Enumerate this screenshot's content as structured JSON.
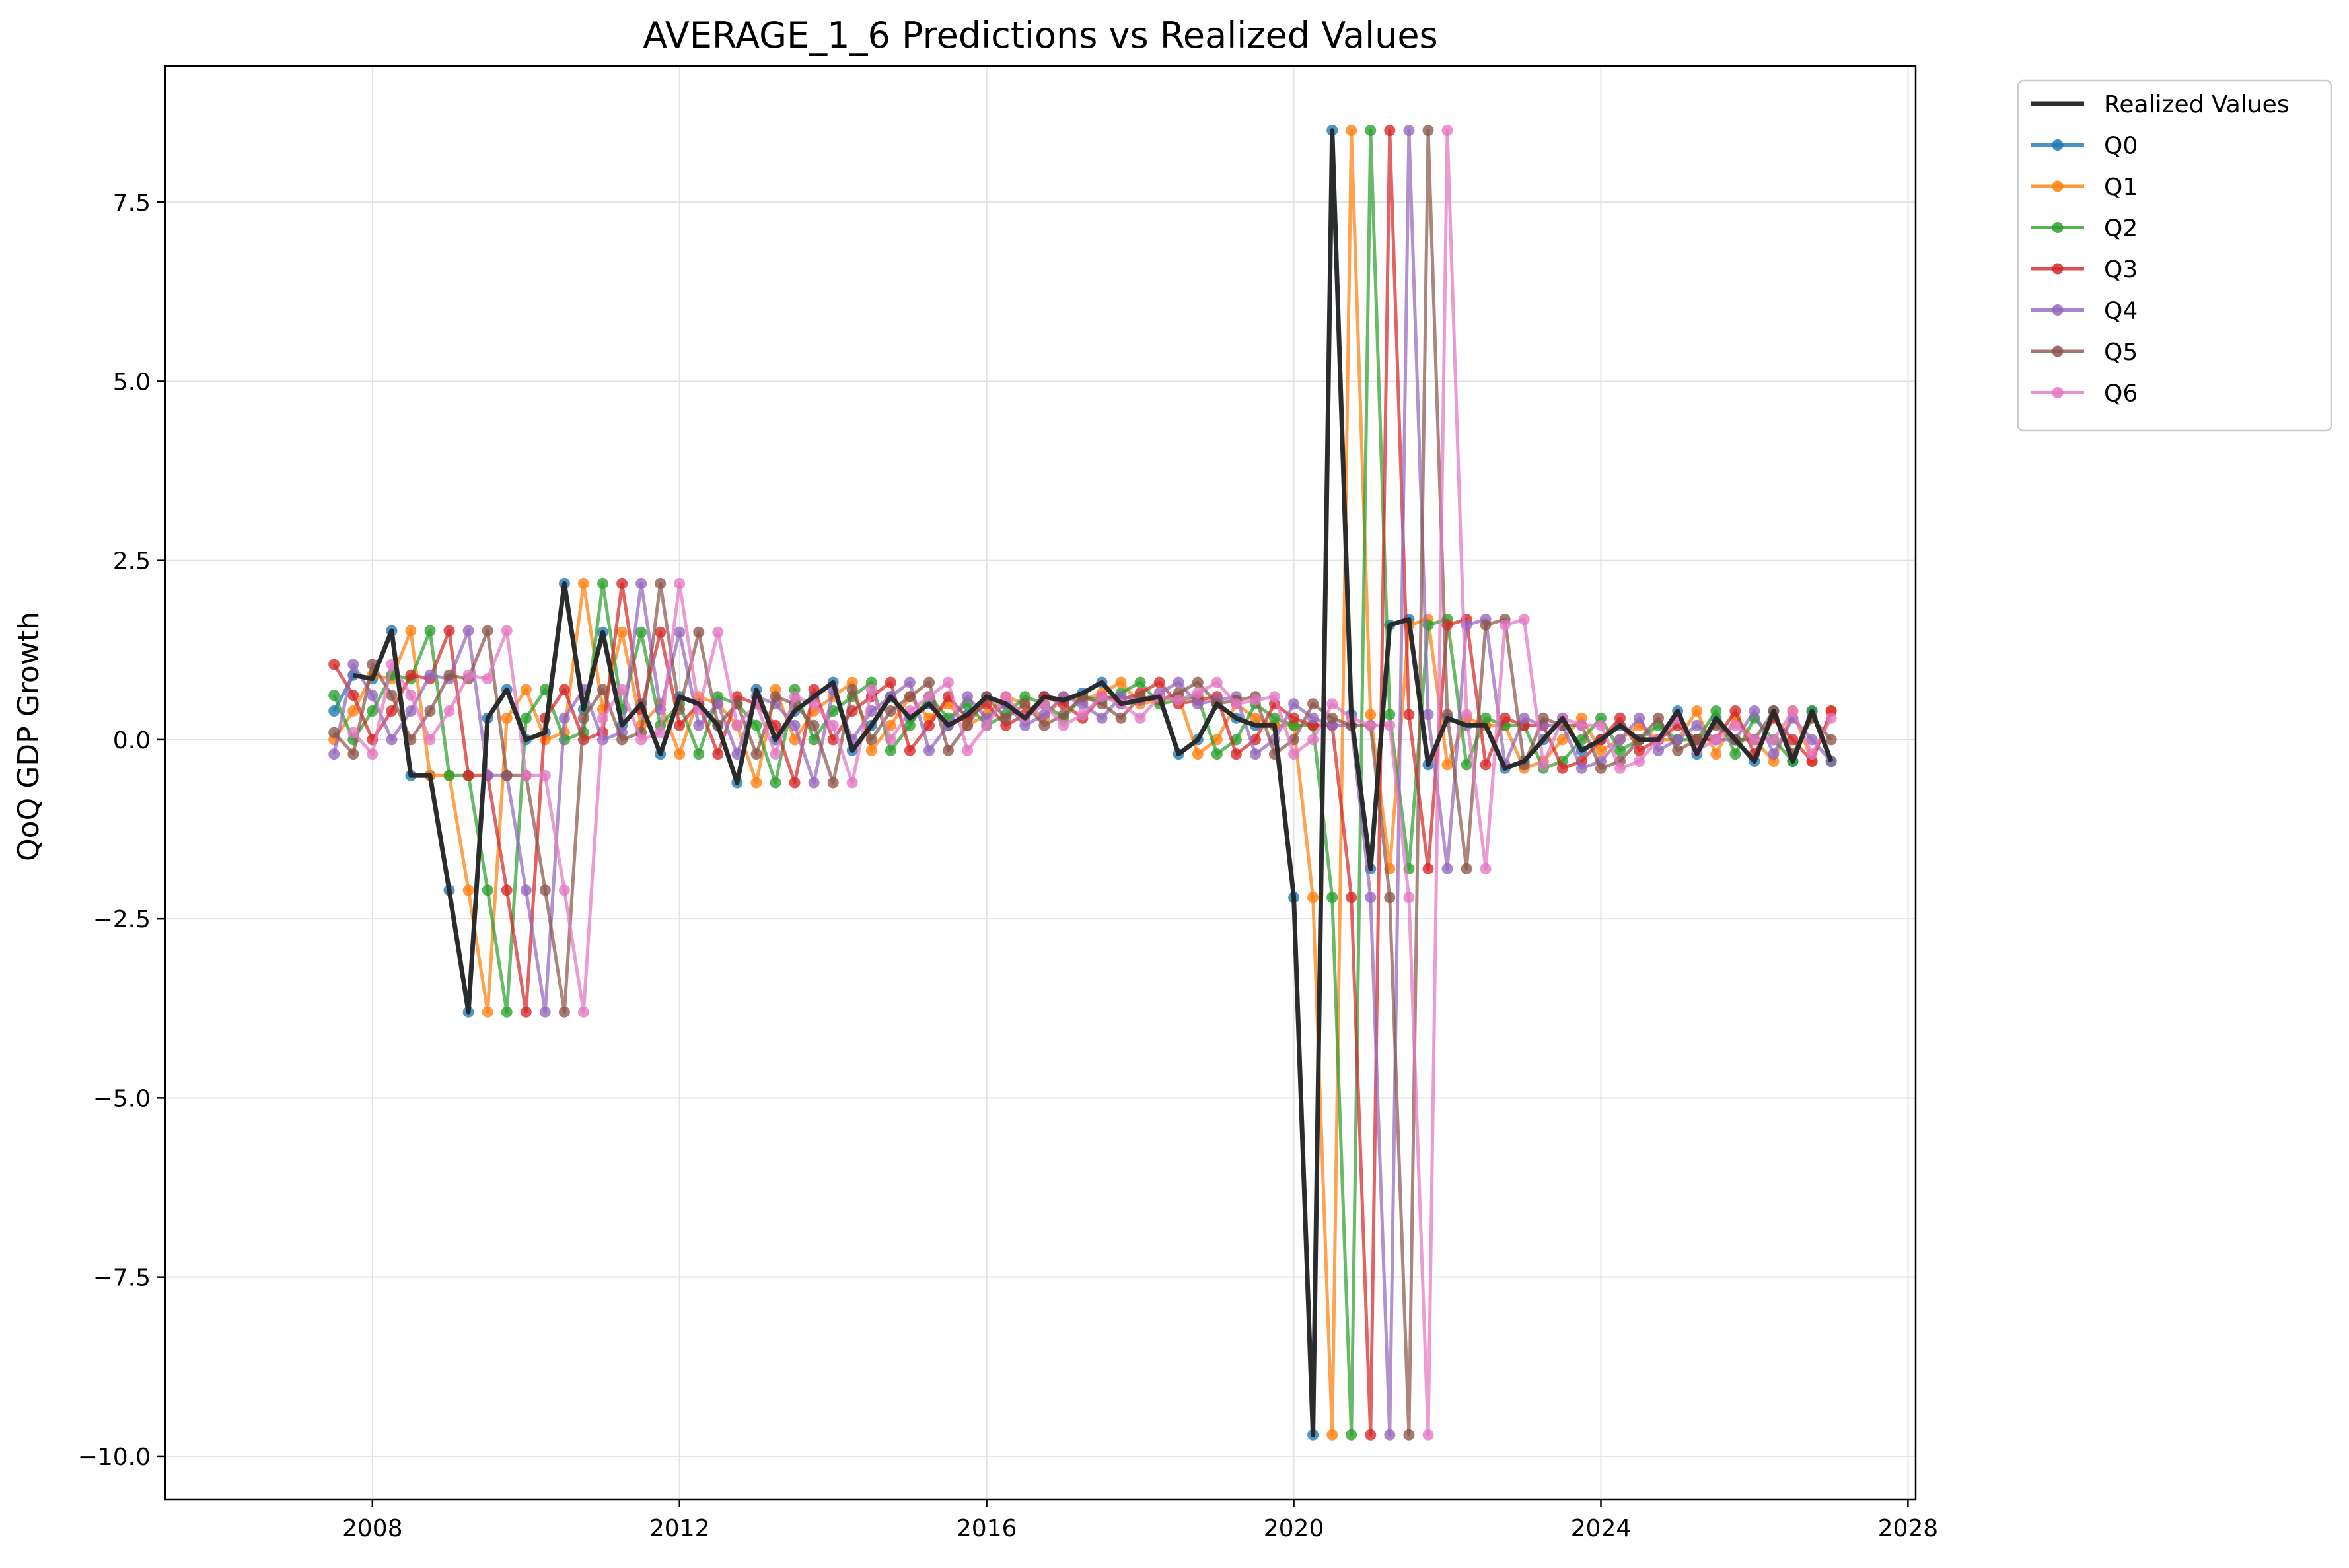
{
  "chart_data": {
    "type": "line",
    "title": "AVERAGE_1_6 Predictions vs Realized Values",
    "xlabel": "",
    "ylabel": "QoQ GDP Growth",
    "xlim": [
      2005.3,
      2028.1
    ],
    "ylim": [
      -10.6,
      9.4
    ],
    "x_ticks": [
      2008,
      2012,
      2016,
      2020,
      2024,
      2028
    ],
    "y_ticks": [
      7.5,
      5.0,
      2.5,
      0.0,
      -2.5,
      -5.0,
      -7.5,
      -10.0
    ],
    "y_tick_labels": [
      "7.5",
      "5.0",
      "2.5",
      "0.0",
      "−2.5",
      "−5.0",
      "−7.5",
      "−10.0"
    ],
    "grid": true,
    "legend_position": "outside-top-right",
    "quarter_x": [
      2006.25,
      2006.5,
      2006.75,
      2007.0,
      2007.25,
      2007.5,
      2007.75,
      2008.0,
      2008.25,
      2008.5,
      2008.75,
      2009.0,
      2009.25,
      2009.5,
      2009.75,
      2010.0,
      2010.25,
      2010.5,
      2010.75,
      2011.0,
      2011.25,
      2011.5,
      2011.75,
      2012.0,
      2012.25,
      2012.5,
      2012.75,
      2013.0,
      2013.25,
      2013.5,
      2013.75,
      2014.0,
      2014.25,
      2014.5,
      2014.75,
      2015.0,
      2015.25,
      2015.5,
      2015.75,
      2016.0,
      2016.25,
      2016.5,
      2016.75,
      2017.0,
      2017.25,
      2017.5,
      2017.75,
      2018.0,
      2018.25,
      2018.5,
      2018.75,
      2019.0,
      2019.25,
      2019.5,
      2019.75,
      2020.0,
      2020.25,
      2020.5,
      2020.75,
      2021.0,
      2021.25,
      2021.5,
      2021.75,
      2022.0,
      2022.25,
      2022.5,
      2022.75,
      2023.0,
      2023.25,
      2023.5,
      2023.75,
      2024.0,
      2024.25,
      2024.5,
      2024.75,
      2025.0,
      2025.25,
      2025.5,
      2025.75,
      2026.0,
      2026.25,
      2026.5,
      2026.75,
      2027.0
    ],
    "base_values": [
      0.1,
      -0.2,
      1.05,
      0.62,
      0.0,
      0.4,
      0.9,
      0.85,
      1.52,
      -0.5,
      -0.5,
      -2.1,
      -3.8,
      0.3,
      0.7,
      0.0,
      0.1,
      2.18,
      0.42,
      1.5,
      0.2,
      0.5,
      -0.2,
      0.6,
      0.5,
      0.2,
      -0.6,
      0.7,
      0.0,
      0.4,
      0.6,
      0.8,
      -0.15,
      0.2,
      0.6,
      0.3,
      0.5,
      0.2,
      0.35,
      0.6,
      0.5,
      0.3,
      0.6,
      0.55,
      0.65,
      0.8,
      0.5,
      0.55,
      0.6,
      -0.2,
      0.0,
      0.5,
      0.3,
      0.2,
      0.2,
      -2.2,
      -9.7,
      8.5,
      0.35,
      -1.8,
      1.6,
      1.68,
      -0.35,
      0.3,
      0.2,
      0.2,
      -0.4,
      -0.3,
      0.0,
      0.3,
      -0.15,
      0.0,
      0.2,
      0.0,
      0.0,
      0.4,
      -0.2,
      0.3,
      0.0,
      -0.3,
      0.4,
      -0.3,
      0.4,
      -0.3
    ],
    "series": [
      {
        "name": "Realized Values",
        "color": "#262626",
        "x_start": 2006.25,
        "offset": 0,
        "count": 78,
        "start_index": 6,
        "markers": false
      },
      {
        "name": "Q0",
        "color": "#1f77b4",
        "x_start": 2006.25,
        "offset": 0,
        "count": 79,
        "start_index": 5,
        "markers": true
      },
      {
        "name": "Q1",
        "color": "#ff7f0e",
        "x_start": 2006.25,
        "offset": 1,
        "count": 79,
        "start_index": 4,
        "markers": true
      },
      {
        "name": "Q2",
        "color": "#2ca02c",
        "x_start": 2006.25,
        "offset": 2,
        "count": 79,
        "start_index": 3,
        "markers": true
      },
      {
        "name": "Q3",
        "color": "#d62728",
        "x_start": 2006.25,
        "offset": 3,
        "count": 79,
        "start_index": 2,
        "markers": true
      },
      {
        "name": "Q4",
        "color": "#9467bd",
        "x_start": 2006.25,
        "offset": 4,
        "count": 79,
        "start_index": 1,
        "markers": true
      },
      {
        "name": "Q5",
        "color": "#8c564b",
        "x_start": 2006.25,
        "offset": 5,
        "count": 80,
        "start_index": 0,
        "markers": true
      },
      {
        "name": "Q6",
        "color": "#e377c2",
        "x_start": 2006.25,
        "offset": 6,
        "count": 84,
        "start_index": 0,
        "markers": true
      }
    ]
  }
}
